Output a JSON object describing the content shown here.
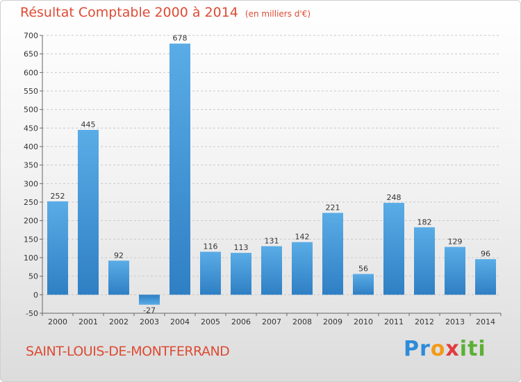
{
  "title": {
    "main": "Résultat Comptable 2000 à 2014",
    "unit": "(en milliers d'€)"
  },
  "town": "SAINT-LOUIS-DE-MONTFERRAND",
  "logo": {
    "text": "Proxiti"
  },
  "colors": {
    "title": "#dd4b34",
    "bar_light": "#5aace6",
    "bar_dark": "#2f7fc4",
    "grid": "#c8c8c8"
  },
  "chart_data": {
    "type": "bar",
    "categories": [
      "2000",
      "2001",
      "2002",
      "2003",
      "2004",
      "2005",
      "2006",
      "2007",
      "2008",
      "2009",
      "2010",
      "2011",
      "2012",
      "2013",
      "2014"
    ],
    "values": [
      252,
      445,
      92,
      -27,
      678,
      116,
      113,
      131,
      142,
      221,
      56,
      248,
      182,
      129,
      96
    ],
    "ylim": [
      -50,
      700
    ],
    "yticks": [
      -50,
      0,
      50,
      100,
      150,
      200,
      250,
      300,
      350,
      400,
      450,
      500,
      550,
      600,
      650,
      700
    ],
    "grid": true,
    "data_labels": true
  }
}
